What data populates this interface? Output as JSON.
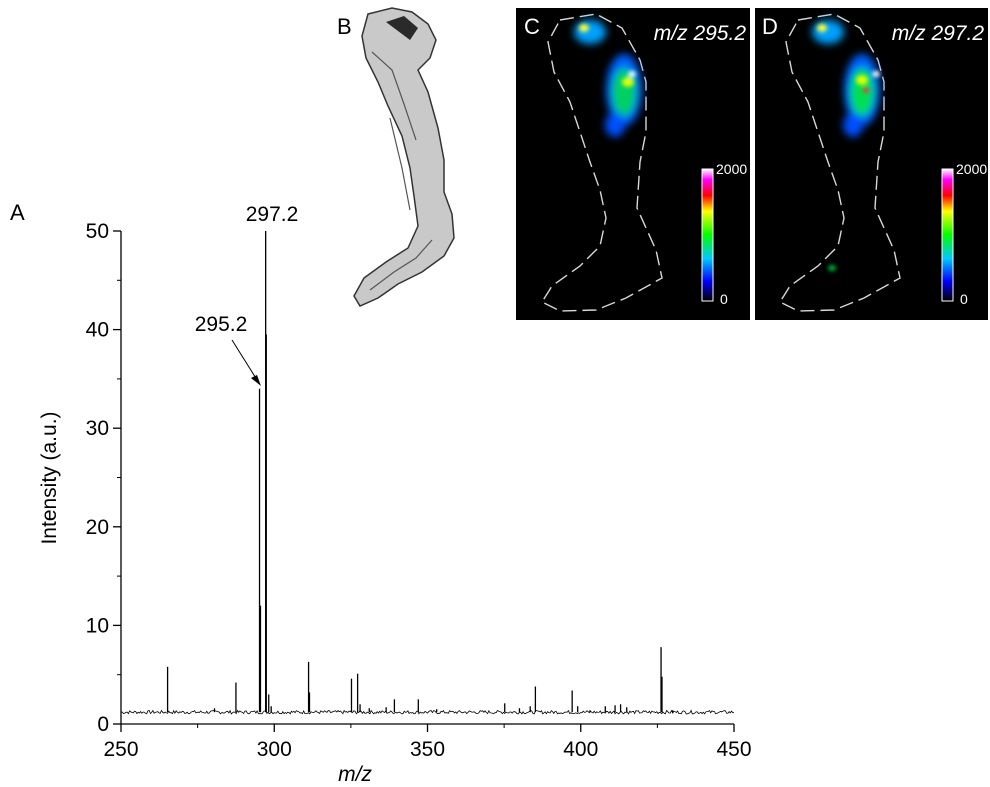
{
  "panel_labels": {
    "a": "A",
    "b": "B",
    "c": "C",
    "d": "D"
  },
  "chart_data": {
    "type": "line",
    "title": "",
    "xlabel": "m/z",
    "ylabel": "Intensity (a.u.)",
    "xlim": [
      250,
      450
    ],
    "ylim": [
      0,
      50
    ],
    "x_ticks": [
      250,
      300,
      350,
      400,
      450
    ],
    "y_ticks": [
      0,
      10,
      20,
      30,
      40,
      50
    ],
    "grid": false,
    "baseline": 1.2,
    "peaks": [
      {
        "x": 265.2,
        "y": 5.8
      },
      {
        "x": 280.5,
        "y": 1.6
      },
      {
        "x": 287.5,
        "y": 4.2
      },
      {
        "x": 295.2,
        "y": 34.0
      },
      {
        "x": 295.5,
        "y": 12.0
      },
      {
        "x": 297.2,
        "y": 50.0
      },
      {
        "x": 297.4,
        "y": 39.5
      },
      {
        "x": 298.2,
        "y": 3.0
      },
      {
        "x": 299.0,
        "y": 1.8
      },
      {
        "x": 311.2,
        "y": 6.3
      },
      {
        "x": 311.5,
        "y": 3.2
      },
      {
        "x": 325.2,
        "y": 4.6
      },
      {
        "x": 327.2,
        "y": 5.1
      },
      {
        "x": 328.0,
        "y": 2.0
      },
      {
        "x": 331.0,
        "y": 1.6
      },
      {
        "x": 336.5,
        "y": 1.7
      },
      {
        "x": 339.2,
        "y": 2.5
      },
      {
        "x": 347.0,
        "y": 2.5
      },
      {
        "x": 353.0,
        "y": 1.5
      },
      {
        "x": 375.2,
        "y": 2.1
      },
      {
        "x": 380.0,
        "y": 1.6
      },
      {
        "x": 383.5,
        "y": 1.8
      },
      {
        "x": 385.2,
        "y": 3.8
      },
      {
        "x": 397.2,
        "y": 3.4
      },
      {
        "x": 399.0,
        "y": 1.8
      },
      {
        "x": 403.0,
        "y": 1.4
      },
      {
        "x": 408.0,
        "y": 1.8
      },
      {
        "x": 411.2,
        "y": 1.9
      },
      {
        "x": 413.0,
        "y": 2.0
      },
      {
        "x": 415.0,
        "y": 1.7
      },
      {
        "x": 426.2,
        "y": 7.8
      },
      {
        "x": 426.5,
        "y": 4.8
      },
      {
        "x": 430.0,
        "y": 1.4
      }
    ],
    "annotations": [
      {
        "text": "297.2",
        "x": 297.2
      },
      {
        "text": "295.2",
        "x": 295.2,
        "arrow": true
      }
    ]
  },
  "images": {
    "c": {
      "label": "m/z 295.2",
      "scale_max": "2000",
      "scale_min": "0"
    },
    "d": {
      "label": "m/z 297.2",
      "scale_max": "2000",
      "scale_min": "0"
    }
  }
}
